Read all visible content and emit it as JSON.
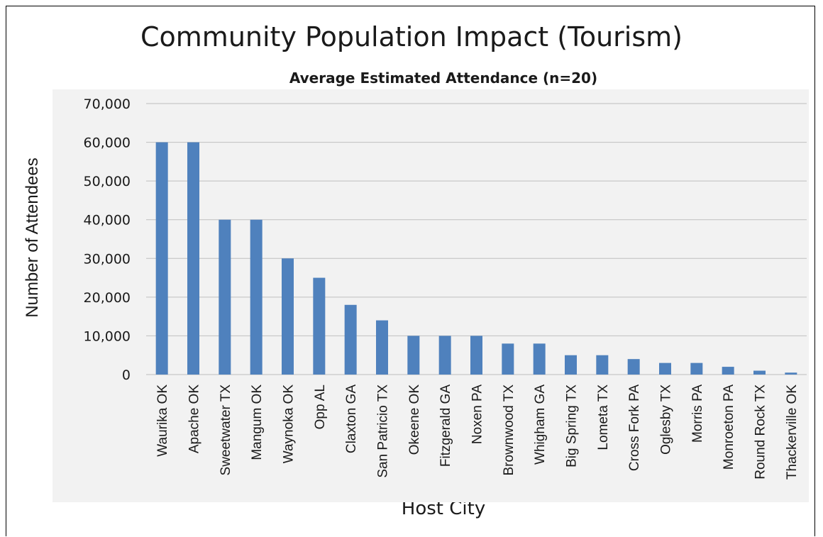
{
  "chart_data": {
    "type": "bar",
    "title": "Community Population Impact (Tourism)",
    "subtitle": "Average Estimated Attendance (n=20)",
    "xlabel": "Host City",
    "ylabel": "Number of Attendees",
    "ylim": [
      0,
      70000
    ],
    "yticks": [
      "0",
      "10,000",
      "20,000",
      "30,000",
      "40,000",
      "50,000",
      "60,000",
      "70,000"
    ],
    "grid": true,
    "categories": [
      "Waurika OK",
      "Apache OK",
      "Sweetwater TX",
      "Mangum OK",
      "Waynoka OK",
      "Opp AL",
      "Claxton GA",
      "San Patricio TX",
      "Okeene OK",
      "Fitzgerald GA",
      "Noxen PA",
      "Brownwood TX",
      "Whigham GA",
      "Big Spring TX",
      "Lometa TX",
      "Cross Fork PA",
      "Oglesby  TX",
      "Morris PA",
      "Monroeton PA",
      "Round Rock TX",
      "Thackerville OK"
    ],
    "values": [
      60000,
      60000,
      40000,
      40000,
      30000,
      25000,
      18000,
      14000,
      10000,
      10000,
      10000,
      8000,
      8000,
      5000,
      5000,
      4000,
      3000,
      3000,
      2000,
      1000,
      500
    ],
    "bar_color": "#4f81bd",
    "grid_color": "#bfbfbf",
    "plot_bg": "#f2f2f2"
  }
}
